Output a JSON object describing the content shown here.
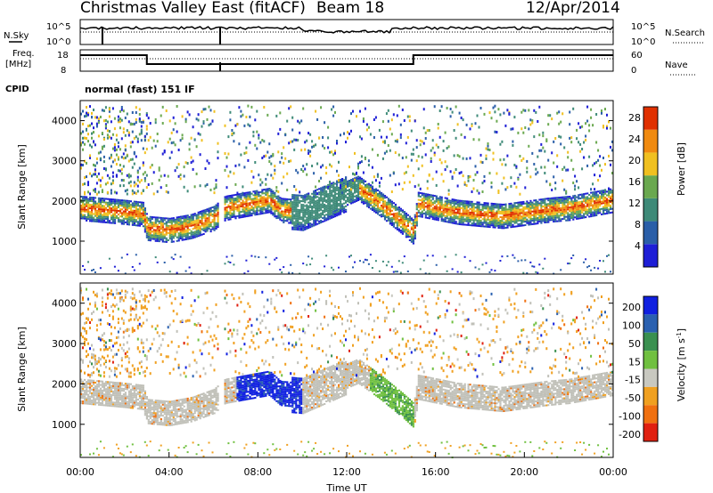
{
  "header": {
    "title": "Christmas Valley East (fitACF)",
    "beam": "Beam 18",
    "date": "12/Apr/2014"
  },
  "top_panels": {
    "nsky_label": "N.Sky",
    "nsky_ticks": [
      "10^5",
      "10^0"
    ],
    "nsearch_label": "N.Search",
    "nsearch_ticks": [
      "10^5",
      "10^0"
    ],
    "freq_label": "Freq.",
    "freq_unit": "[MHz]",
    "freq_ticks": [
      "18",
      "8"
    ],
    "nave_label": "Nave",
    "nave_ticks": [
      "60",
      "0"
    ],
    "cpid_label": "CPID",
    "cpid_value": "normal (fast) 151 IF"
  },
  "chart_data": [
    {
      "type": "heatmap",
      "panel": "power",
      "ylabel": "Slant Range [km]",
      "yticks": [
        1000,
        2000,
        3000,
        4000
      ],
      "ylim": [
        180,
        4500
      ],
      "xlim_hours": [
        0,
        24
      ],
      "colorbar_label": "Power [dB]",
      "colorbar_ticks": [
        4,
        8,
        12,
        16,
        20,
        24,
        28
      ],
      "colorbar_range": [
        0,
        30
      ],
      "colors": [
        "#1e1ed6",
        "#2a5ea8",
        "#3e8a78",
        "#6aa84f",
        "#f0c020",
        "#f08a10",
        "#e03000"
      ],
      "main_echo_track": [
        [
          0.0,
          1800
        ],
        [
          1.0,
          1750
        ],
        [
          2.0,
          1700
        ],
        [
          2.8,
          1650
        ],
        [
          3.0,
          1300
        ],
        [
          4.0,
          1250
        ],
        [
          5.0,
          1350
        ],
        [
          6.0,
          1550
        ],
        [
          6.5,
          1800
        ],
        [
          7.5,
          1900
        ],
        [
          8.5,
          2000
        ],
        [
          9.0,
          1750
        ],
        [
          10.0,
          1700
        ],
        [
          12.5,
          2300
        ],
        [
          13.5,
          1900
        ],
        [
          14.5,
          1450
        ],
        [
          15.0,
          1200
        ],
        [
          15.2,
          1900
        ],
        [
          17.0,
          1700
        ],
        [
          19.0,
          1600
        ],
        [
          21.0,
          1750
        ],
        [
          22.0,
          1800
        ],
        [
          23.0,
          1900
        ],
        [
          24.0,
          2000
        ]
      ]
    },
    {
      "type": "heatmap",
      "panel": "velocity",
      "ylabel": "Slant Range [km]",
      "yticks": [
        1000,
        2000,
        3000,
        4000
      ],
      "ylim": [
        180,
        4500
      ],
      "xlim_hours": [
        0,
        24
      ],
      "xlabel": "Time UT",
      "xticks": [
        "00:00",
        "04:00",
        "08:00",
        "12:00",
        "16:00",
        "20:00",
        "00:00"
      ],
      "colorbar_label": "Velocity [m s",
      "colorbar_label_exp": "-1",
      "colorbar_ticks": [
        200,
        100,
        50,
        15,
        -15,
        -50,
        -100,
        -200
      ],
      "colors": [
        "#1020e0",
        "#2a60b0",
        "#3a9050",
        "#70c040",
        "#c8c8c0",
        "#f0a020",
        "#f07010",
        "#e02010"
      ]
    }
  ],
  "colors": {
    "ground_scatter": "#c0c0b8",
    "frame": "#000000"
  }
}
